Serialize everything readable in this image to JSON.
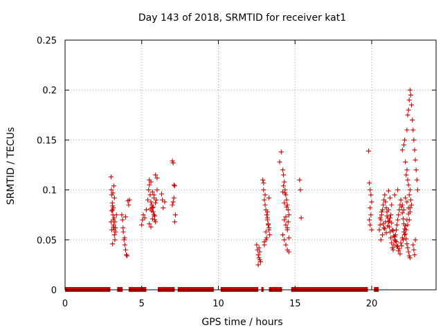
{
  "chart_data": {
    "type": "scatter",
    "title": "Day 143 of 2018, SRMTID for receiver kat1",
    "xlabel": "GPS time / hours",
    "ylabel": "SRMTID / TECUs",
    "xlim": [
      0,
      24.2
    ],
    "ylim": [
      0,
      0.25
    ],
    "grid": true,
    "x_ticks": [
      0,
      5,
      10,
      15,
      20
    ],
    "y_ticks": [
      0,
      0.05,
      0.1,
      0.15,
      0.2,
      0.25
    ],
    "y_tick_labels": [
      "0",
      "0.05",
      "0.1",
      "0.15",
      "0.2",
      "0.25"
    ],
    "marker_color": "#cc0000",
    "marker": "+",
    "series": [
      {
        "name": "SRMTID",
        "x": [
          3.0,
          3.02,
          3.05,
          3.08,
          3.1,
          3.12,
          3.15,
          3.17,
          3.2,
          3.22,
          3.25,
          3.05,
          3.1,
          3.15,
          3.2,
          3.25,
          3.3,
          3.12,
          3.18,
          3.22,
          3.28,
          3.35,
          3.1,
          3.0,
          3.05,
          3.15,
          3.7,
          3.75,
          3.8,
          3.85,
          3.9,
          3.95,
          4.0,
          4.05,
          3.78,
          3.88,
          3.95,
          4.1,
          4.15,
          4.2,
          5.0,
          5.05,
          5.1,
          5.2,
          5.3,
          5.4,
          5.45,
          5.5,
          5.55,
          5.6,
          5.65,
          5.7,
          5.75,
          5.8,
          5.85,
          5.9,
          5.95,
          6.0,
          5.5,
          5.6,
          5.7,
          5.8,
          5.9,
          5.55,
          5.65,
          5.75,
          5.85,
          5.5,
          5.6,
          5.7,
          5.8,
          5.9,
          6.0,
          6.3,
          6.35,
          6.4,
          6.5,
          7.0,
          7.05,
          7.1,
          7.15,
          7.0,
          7.05,
          7.1,
          7.15,
          7.2,
          12.5,
          12.55,
          12.6,
          12.65,
          12.7,
          12.75,
          12.6,
          12.65,
          12.7,
          12.9,
          12.95,
          13.0,
          13.05,
          13.1,
          13.15,
          13.2,
          13.25,
          13.3,
          13.35,
          12.95,
          13.05,
          13.15,
          13.25,
          13.0,
          13.1,
          13.2,
          13.3,
          13.0,
          13.1,
          13.2,
          13.3,
          14.0,
          14.1,
          14.2,
          14.25,
          14.3,
          14.35,
          14.4,
          14.45,
          14.5,
          14.55,
          14.6,
          14.3,
          14.4,
          14.5,
          14.2,
          14.3,
          14.4,
          14.5,
          14.6,
          14.25,
          14.35,
          14.45,
          14.55,
          14.2,
          14.3,
          14.4,
          14.5,
          14.6,
          15.3,
          15.35,
          15.4,
          19.8,
          19.85,
          19.9,
          19.95,
          20.0,
          19.9,
          19.95,
          19.85,
          19.9,
          20.0,
          20.5,
          20.55,
          20.6,
          20.65,
          20.7,
          20.75,
          20.8,
          20.85,
          20.9,
          20.95,
          21.0,
          21.05,
          21.1,
          21.15,
          21.2,
          21.25,
          21.3,
          21.35,
          21.4,
          21.45,
          21.5,
          21.55,
          21.6,
          21.65,
          21.7,
          21.75,
          21.8,
          21.85,
          21.9,
          21.95,
          22.0,
          22.05,
          22.1,
          22.15,
          22.2,
          22.25,
          22.3,
          22.35,
          22.4,
          22.45,
          22.5,
          20.6,
          20.7,
          20.8,
          20.9,
          21.0,
          21.1,
          21.2,
          21.3,
          21.4,
          21.5,
          21.6,
          21.7,
          21.8,
          21.9,
          22.0,
          22.1,
          22.2,
          22.3,
          22.4,
          22.5,
          20.55,
          20.65,
          20.75,
          20.85,
          20.95,
          21.05,
          21.15,
          21.25,
          21.35,
          21.45,
          21.55,
          21.65,
          21.75,
          21.85,
          21.95,
          22.05,
          22.15,
          22.25,
          22.35,
          22.45,
          21.1,
          21.2,
          21.3,
          21.5,
          21.7,
          21.9,
          22.0,
          22.1,
          22.2,
          22.3,
          22.4,
          22.5,
          22.0,
          22.1,
          22.15,
          22.2,
          22.25,
          22.3,
          22.35,
          22.4,
          22.45,
          22.5,
          22.55,
          22.6,
          22.3,
          22.35,
          22.4,
          22.45,
          22.5,
          22.55,
          22.6,
          22.65,
          22.7,
          22.75,
          22.8,
          22.85,
          22.9,
          22.95,
          23.0,
          22.7,
          22.75,
          22.8,
          22.85
        ],
        "y": [
          0.113,
          0.1,
          0.095,
          0.087,
          0.08,
          0.075,
          0.07,
          0.065,
          0.06,
          0.055,
          0.05,
          0.079,
          0.084,
          0.063,
          0.072,
          0.068,
          0.058,
          0.097,
          0.104,
          0.092,
          0.062,
          0.075,
          0.046,
          0.068,
          0.06,
          0.082,
          0.075,
          0.07,
          0.058,
          0.05,
          0.045,
          0.04,
          0.035,
          0.034,
          0.062,
          0.052,
          0.073,
          0.089,
          0.085,
          0.09,
          0.065,
          0.07,
          0.075,
          0.072,
          0.08,
          0.09,
          0.1,
          0.11,
          0.095,
          0.088,
          0.085,
          0.082,
          0.078,
          0.075,
          0.07,
          0.068,
          0.09,
          0.1,
          0.105,
          0.108,
          0.098,
          0.095,
          0.087,
          0.081,
          0.079,
          0.083,
          0.074,
          0.066,
          0.063,
          0.071,
          0.092,
          0.115,
          0.112,
          0.096,
          0.09,
          0.082,
          0.088,
          0.129,
          0.127,
          0.105,
          0.104,
          0.085,
          0.088,
          0.092,
          0.068,
          0.075,
          0.045,
          0.04,
          0.035,
          0.032,
          0.03,
          0.028,
          0.025,
          0.042,
          0.038,
          0.11,
          0.1,
          0.09,
          0.085,
          0.08,
          0.075,
          0.07,
          0.065,
          0.06,
          0.055,
          0.107,
          0.095,
          0.052,
          0.066,
          0.048,
          0.058,
          0.072,
          0.062,
          0.045,
          0.05,
          0.078,
          0.092,
          0.128,
          0.138,
          0.12,
          0.115,
          0.108,
          0.1,
          0.095,
          0.09,
          0.085,
          0.08,
          0.075,
          0.07,
          0.065,
          0.06,
          0.055,
          0.05,
          0.045,
          0.04,
          0.038,
          0.104,
          0.097,
          0.083,
          0.068,
          0.098,
          0.087,
          0.073,
          0.062,
          0.052,
          0.11,
          0.1,
          0.072,
          0.139,
          0.107,
          0.1,
          0.095,
          0.088,
          0.082,
          0.075,
          0.07,
          0.065,
          0.06,
          0.06,
          0.065,
          0.07,
          0.075,
          0.08,
          0.085,
          0.09,
          0.095,
          0.088,
          0.082,
          0.078,
          0.072,
          0.068,
          0.063,
          0.058,
          0.052,
          0.047,
          0.042,
          0.04,
          0.045,
          0.05,
          0.055,
          0.06,
          0.065,
          0.07,
          0.075,
          0.08,
          0.085,
          0.09,
          0.083,
          0.077,
          0.071,
          0.066,
          0.061,
          0.056,
          0.051,
          0.046,
          0.042,
          0.038,
          0.034,
          0.032,
          0.05,
          0.055,
          0.062,
          0.068,
          0.074,
          0.08,
          0.072,
          0.067,
          0.059,
          0.053,
          0.048,
          0.044,
          0.041,
          0.047,
          0.052,
          0.058,
          0.064,
          0.07,
          0.076,
          0.082,
          0.072,
          0.078,
          0.066,
          0.061,
          0.057,
          0.064,
          0.069,
          0.075,
          0.06,
          0.054,
          0.049,
          0.043,
          0.039,
          0.036,
          0.044,
          0.05,
          0.055,
          0.06,
          0.065,
          0.07,
          0.099,
          0.092,
          0.085,
          0.095,
          0.1,
          0.09,
          0.085,
          0.08,
          0.092,
          0.088,
          0.082,
          0.078,
          0.14,
          0.145,
          0.15,
          0.128,
          0.115,
          0.12,
          0.11,
          0.105,
          0.095,
          0.1,
          0.09,
          0.085,
          0.16,
          0.175,
          0.18,
          0.19,
          0.2,
          0.195,
          0.185,
          0.17,
          0.16,
          0.15,
          0.14,
          0.13,
          0.12,
          0.11,
          0.1,
          0.045,
          0.04,
          0.035,
          0.05
        ]
      }
    ],
    "zero_band": {
      "note": "clustered points at zero along the x axis",
      "segments": [
        [
          0,
          2.95
        ],
        [
          3.4,
          3.75
        ],
        [
          4.15,
          5.3
        ],
        [
          6.05,
          7.15
        ],
        [
          7.35,
          9.7
        ],
        [
          10.15,
          12.6
        ],
        [
          12.8,
          12.95
        ],
        [
          13.3,
          14.15
        ],
        [
          14.75,
          19.75
        ],
        [
          20.15,
          20.45
        ]
      ]
    }
  }
}
